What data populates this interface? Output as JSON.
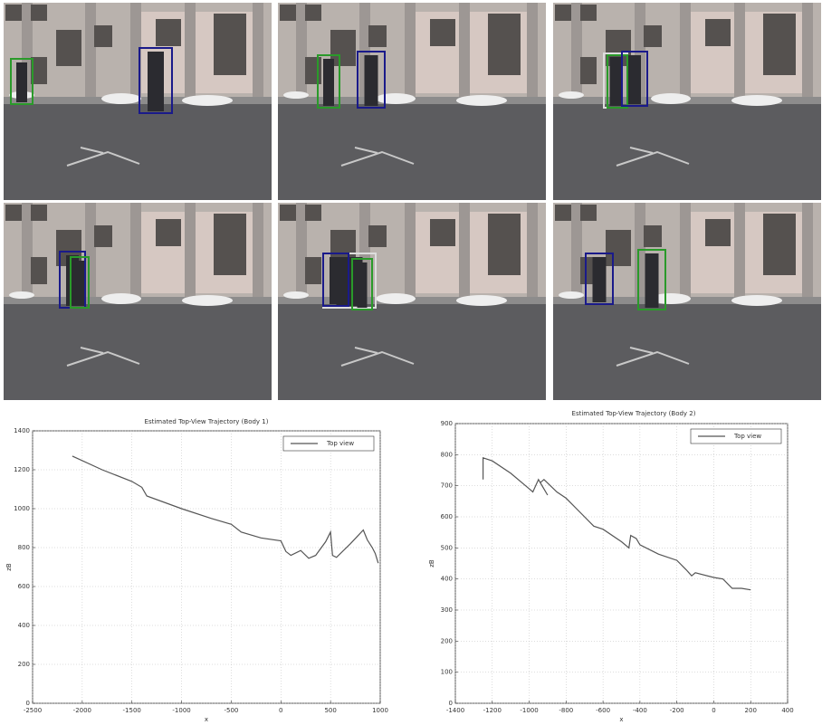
{
  "chart_data": [
    {
      "type": "line",
      "title": "Estimated Top-View Trajectory (Body 1)",
      "xlabel": "x",
      "ylabel": "zB",
      "x": [
        -2100,
        -1800,
        -1500,
        -1400,
        -1350,
        -1000,
        -700,
        -500,
        -400,
        -200,
        0,
        50,
        100,
        200,
        280,
        350,
        450,
        500,
        520,
        560,
        700,
        830,
        870,
        920,
        950,
        980
      ],
      "series": [
        {
          "name": "Top view",
          "color": "#555555",
          "values": [
            1270,
            1200,
            1140,
            1110,
            1065,
            1000,
            950,
            920,
            880,
            850,
            835,
            780,
            760,
            785,
            745,
            760,
            830,
            880,
            760,
            750,
            820,
            890,
            840,
            800,
            770,
            720
          ]
        }
      ],
      "xlim": [
        -2500,
        1000
      ],
      "xticks": [
        -2500,
        -2000,
        -1500,
        -1000,
        -500,
        0,
        500,
        1000
      ],
      "ylim": [
        0,
        1400
      ],
      "yticks": [
        0,
        200,
        400,
        600,
        800,
        1000,
        1200,
        1400
      ],
      "grid": true,
      "legend": "upper right"
    },
    {
      "type": "line",
      "title": "Estimated Top-View Trajectory (Body 2)",
      "xlabel": "x",
      "ylabel": "zB",
      "x": [
        -1250,
        -1250,
        -1200,
        -1100,
        -1000,
        -980,
        -950,
        -930,
        -900,
        -940,
        -920,
        -850,
        -800,
        -700,
        -650,
        -600,
        -500,
        -460,
        -450,
        -420,
        -400,
        -300,
        -200,
        -150,
        -120,
        -100,
        0,
        50,
        100,
        150,
        200
      ],
      "series": [
        {
          "name": "Top view",
          "color": "#555555",
          "values": [
            720,
            790,
            780,
            740,
            690,
            680,
            720,
            700,
            670,
            710,
            720,
            680,
            660,
            600,
            570,
            560,
            520,
            500,
            540,
            530,
            510,
            480,
            460,
            430,
            410,
            420,
            405,
            400,
            370,
            370,
            365
          ]
        }
      ],
      "xlim": [
        -1400,
        400
      ],
      "xticks": [
        -1400,
        -1200,
        -1000,
        -800,
        -600,
        -400,
        -200,
        0,
        200,
        400
      ],
      "ylim": [
        0,
        900
      ],
      "yticks": [
        0,
        100,
        200,
        300,
        400,
        500,
        600,
        700,
        800,
        900
      ],
      "grid": true,
      "legend": "upper right"
    }
  ]
}
